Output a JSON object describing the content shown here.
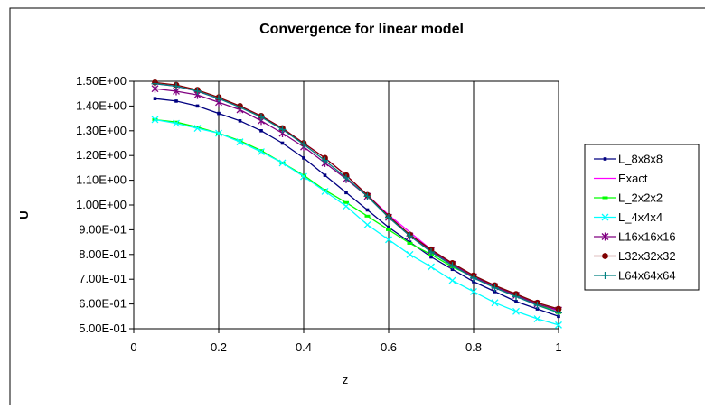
{
  "chart_data": {
    "type": "line",
    "title": "Convergence for linear model",
    "xlabel": "z",
    "ylabel": "U",
    "xlim": [
      0,
      1
    ],
    "ylim": [
      0.5,
      1.5
    ],
    "x_ticks": [
      0,
      0.2,
      0.4,
      0.6,
      0.8,
      1
    ],
    "x_tick_labels": [
      "0",
      "0.2",
      "0.4",
      "0.6",
      "0.8",
      "1"
    ],
    "y_ticks": [
      0.5,
      0.6,
      0.7,
      0.8,
      0.9,
      1.0,
      1.1,
      1.2,
      1.3,
      1.4,
      1.5
    ],
    "y_tick_labels": [
      "5.00E-01",
      "6.00E-01",
      "7.00E-01",
      "8.00E-01",
      "9.00E-01",
      "1.00E+00",
      "1.10E+00",
      "1.20E+00",
      "1.30E+00",
      "1.40E+00",
      "1.50E+00"
    ],
    "grid": "vertical",
    "legend_position": "right",
    "x": [
      0.05,
      0.1,
      0.15,
      0.2,
      0.25,
      0.3,
      0.35,
      0.4,
      0.45,
      0.5,
      0.55,
      0.6,
      0.65,
      0.7,
      0.75,
      0.8,
      0.85,
      0.9,
      0.95,
      1.0
    ],
    "series": [
      {
        "name": "L_8x8x8",
        "color": "#000080",
        "marker": "dot",
        "values": [
          1.43,
          1.42,
          1.4,
          1.37,
          1.34,
          1.3,
          1.25,
          1.19,
          1.12,
          1.05,
          0.98,
          0.91,
          0.85,
          0.79,
          0.74,
          0.69,
          0.65,
          0.61,
          0.58,
          0.55
        ]
      },
      {
        "name": "Exact",
        "color": "#ff00ff",
        "marker": "none",
        "values": [
          1.49,
          1.48,
          1.46,
          1.43,
          1.4,
          1.36,
          1.31,
          1.25,
          1.19,
          1.12,
          1.04,
          0.96,
          0.89,
          0.82,
          0.76,
          0.71,
          0.67,
          0.63,
          0.6,
          0.57
        ]
      },
      {
        "name": "L_2x2x2",
        "color": "#00ff00",
        "marker": "dash",
        "values": [
          1.345,
          1.335,
          1.315,
          1.29,
          1.26,
          1.22,
          1.17,
          1.12,
          1.06,
          1.01,
          0.955,
          0.9,
          0.845,
          0.8,
          0.75,
          0.71,
          0.67,
          0.635,
          0.6,
          0.565
        ]
      },
      {
        "name": "L_4x4x4",
        "color": "#00ffff",
        "marker": "x",
        "values": [
          1.345,
          1.33,
          1.31,
          1.29,
          1.255,
          1.215,
          1.17,
          1.115,
          1.055,
          0.995,
          0.92,
          0.86,
          0.8,
          0.75,
          0.695,
          0.65,
          0.605,
          0.57,
          0.54,
          0.515
        ]
      },
      {
        "name": "L16x16x16",
        "color": "#800080",
        "marker": "star",
        "values": [
          1.47,
          1.46,
          1.445,
          1.415,
          1.385,
          1.34,
          1.29,
          1.235,
          1.17,
          1.105,
          1.035,
          0.95,
          0.875,
          0.815,
          0.76,
          0.71,
          0.67,
          0.635,
          0.6,
          0.575
        ]
      },
      {
        "name": "L32x32x32",
        "color": "#800000",
        "marker": "circle",
        "values": [
          1.495,
          1.485,
          1.465,
          1.435,
          1.4,
          1.36,
          1.31,
          1.25,
          1.19,
          1.12,
          1.04,
          0.955,
          0.88,
          0.82,
          0.765,
          0.715,
          0.675,
          0.64,
          0.605,
          0.58
        ]
      },
      {
        "name": "L64x64x64",
        "color": "#008080",
        "marker": "plus",
        "values": [
          1.49,
          1.48,
          1.46,
          1.43,
          1.395,
          1.355,
          1.305,
          1.245,
          1.18,
          1.11,
          1.035,
          0.95,
          0.875,
          0.81,
          0.755,
          0.705,
          0.665,
          0.63,
          0.595,
          0.565
        ]
      }
    ]
  }
}
